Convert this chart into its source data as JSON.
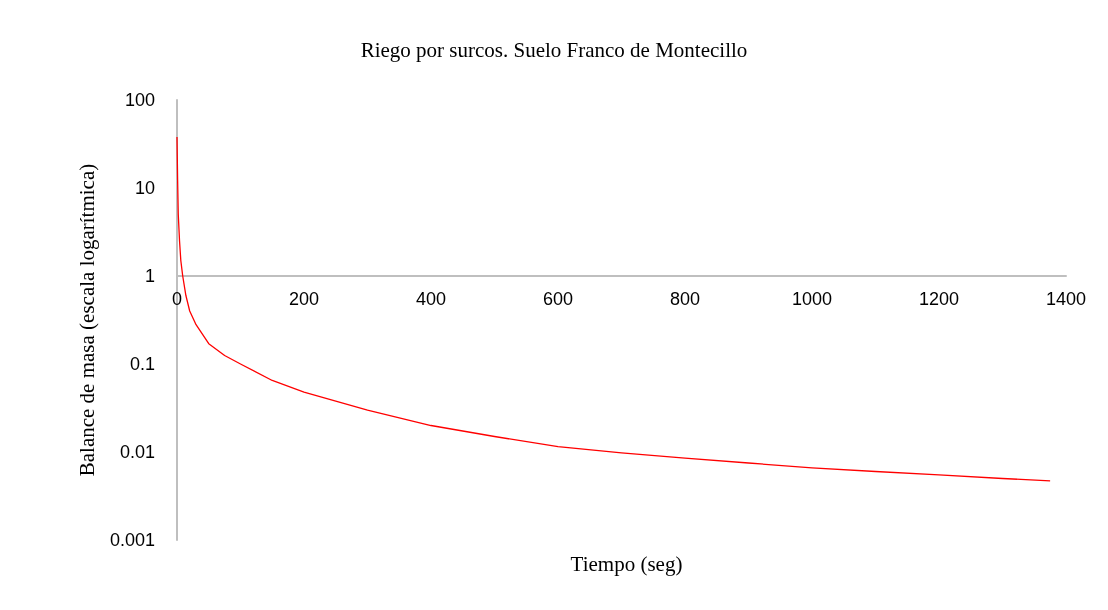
{
  "chart_data": {
    "type": "line",
    "title": "Riego por surcos. Suelo Franco de Montecillo",
    "xlabel": "Tiempo (seg)",
    "ylabel": "Balance de masa (escala logarítmica)",
    "log": "y",
    "xlim": [
      0,
      1400
    ],
    "xticks": [
      0,
      200,
      400,
      600,
      800,
      1000,
      1200,
      1400
    ],
    "ylim": [
      0.001,
      100
    ],
    "yticks": [
      0.001,
      0.01,
      0.1,
      1,
      10,
      100
    ],
    "grid": false,
    "marker": "none",
    "line_style": "solid",
    "x": [
      0,
      1,
      2,
      4,
      6,
      9,
      14,
      20,
      30,
      50,
      75,
      100,
      150,
      200,
      300,
      400,
      500,
      600,
      700,
      800,
      900,
      1000,
      1100,
      1200,
      1300,
      1375
    ],
    "series": [
      {
        "color": "#ff0000",
        "values": [
          38,
          12,
          5,
          2.5,
          1.5,
          1,
          0.6,
          0.4,
          0.28,
          0.17,
          0.125,
          0.1,
          0.065,
          0.048,
          0.03,
          0.02,
          0.015,
          0.0115,
          0.0098,
          0.0085,
          0.0075,
          0.0066,
          0.006,
          0.0055,
          0.005,
          0.0047
        ]
      }
    ]
  }
}
